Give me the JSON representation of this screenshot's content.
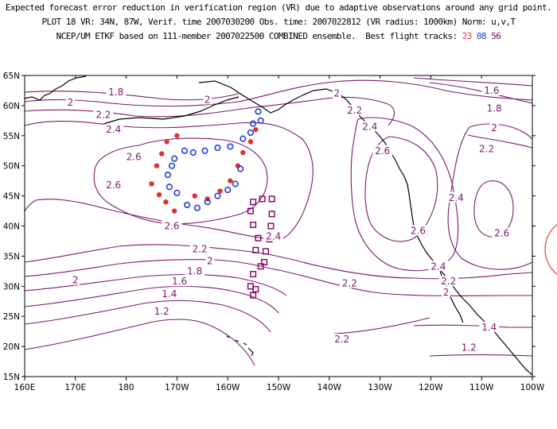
{
  "header": {
    "line1": "Expected forecast error reduction in verification region (VR) due to adaptive observations around any grid point.",
    "line2": "PLOT 18 VR: 34N, 87W, Verif. time 2007030200 Obs. time: 2007022812 (VR radius: 1000km) Norm: u,v,T",
    "line3_prefix": "NCEP/UM ETKF based on 111-member 2007022500 COMBINED ensemble.  Best flight tracks: ",
    "track1": "23",
    "track2": "08",
    "track3": "56"
  },
  "colors": {
    "contour": "#7a1a6e",
    "track1": "#e03030",
    "track2": "#2040d0",
    "track3": "#800060",
    "coast": "#000000",
    "vr_circle": "#e04040"
  },
  "map": {
    "lon_ticks": [
      "160E",
      "170E",
      "180",
      "170W",
      "160W",
      "150W",
      "140W",
      "130W",
      "120W",
      "110W",
      "100W"
    ],
    "lat_ticks": [
      "15N",
      "20N",
      "25N",
      "30N",
      "35N",
      "40N",
      "45N",
      "50N",
      "55N",
      "60N",
      "65N"
    ],
    "contour_labels": [
      {
        "text": "2",
        "lon": -164,
        "lat": 61
      },
      {
        "text": "1.8",
        "lon": 178,
        "lat": 62.2
      },
      {
        "text": "2",
        "lon": 169,
        "lat": 60.5
      },
      {
        "text": "2.2",
        "lon": 175.5,
        "lat": 58.5
      },
      {
        "text": "2.4",
        "lon": 177.5,
        "lat": 56
      },
      {
        "text": "2.6",
        "lon": -178.5,
        "lat": 51.5
      },
      {
        "text": "2.6",
        "lon": 177.5,
        "lat": 46.8
      },
      {
        "text": "2.6",
        "lon": -171,
        "lat": 40
      },
      {
        "text": "2.4",
        "lon": -151,
        "lat": 38.3
      },
      {
        "text": "2.2",
        "lon": -165.5,
        "lat": 36.2
      },
      {
        "text": "2",
        "lon": -163.5,
        "lat": 34.2
      },
      {
        "text": "1.8",
        "lon": -166.5,
        "lat": 32.5
      },
      {
        "text": "1.6",
        "lon": -169.5,
        "lat": 30.8
      },
      {
        "text": "1.4",
        "lon": -171.5,
        "lat": 28.7
      },
      {
        "text": "1.2",
        "lon": -173,
        "lat": 25.8
      },
      {
        "text": "2",
        "lon": 170,
        "lat": 31
      },
      {
        "text": "2",
        "lon": -138.5,
        "lat": 62
      },
      {
        "text": "2.2",
        "lon": -135,
        "lat": 59.2
      },
      {
        "text": "2.4",
        "lon": -132,
        "lat": 56.5
      },
      {
        "text": "2.6",
        "lon": -129.5,
        "lat": 52.5
      },
      {
        "text": "2.6",
        "lon": -122.5,
        "lat": 39.2
      },
      {
        "text": "2.2",
        "lon": -136,
        "lat": 30.5
      },
      {
        "text": "2.2",
        "lon": -137.5,
        "lat": 21.2
      },
      {
        "text": "2.4",
        "lon": -118.5,
        "lat": 33.3
      },
      {
        "text": "2.2",
        "lon": -116.5,
        "lat": 30.8
      },
      {
        "text": "2",
        "lon": -117,
        "lat": 29
      },
      {
        "text": "1.6",
        "lon": -108,
        "lat": 62.5
      },
      {
        "text": "1.8",
        "lon": -107.5,
        "lat": 59.5
      },
      {
        "text": "2",
        "lon": -107.5,
        "lat": 56.3
      },
      {
        "text": "2.2",
        "lon": -109,
        "lat": 52.8
      },
      {
        "text": "2.4",
        "lon": -115,
        "lat": 44.7
      },
      {
        "text": "2.6",
        "lon": -106,
        "lat": 38.8
      },
      {
        "text": "1.4",
        "lon": -108.5,
        "lat": 23.2
      },
      {
        "text": "1.2",
        "lon": -112.5,
        "lat": 19.8
      }
    ],
    "track1_points": [
      [
        -175.0,
        47.0
      ],
      [
        -174.0,
        50.0
      ],
      [
        -173.0,
        52.0
      ],
      [
        -172.0,
        54.0
      ],
      [
        -170.0,
        55.0
      ],
      [
        -173.5,
        45.2
      ],
      [
        -172.2,
        44.0
      ],
      [
        -170.5,
        42.5
      ],
      [
        -166.5,
        45.0
      ],
      [
        -164.0,
        44.5
      ],
      [
        -161.5,
        45.8
      ],
      [
        -159.5,
        47.5
      ],
      [
        -158.0,
        50.0
      ],
      [
        -157.0,
        52.2
      ],
      [
        -155.5,
        54.0
      ],
      [
        -154.5,
        56.0
      ]
    ],
    "track2_points": [
      [
        -170.5,
        51.2
      ],
      [
        -168.5,
        52.5
      ],
      [
        -166.8,
        52.2
      ],
      [
        -164.5,
        52.5
      ],
      [
        -162.0,
        53.0
      ],
      [
        -159.5,
        53.2
      ],
      [
        -157.0,
        54.5
      ],
      [
        -155.0,
        57.0
      ],
      [
        -154.0,
        59.0
      ],
      [
        -153.5,
        57.5
      ],
      [
        -155.5,
        55.5
      ],
      [
        -157.5,
        49.5
      ],
      [
        -158.5,
        47.0
      ],
      [
        -160.0,
        46.0
      ],
      [
        -162.0,
        45.0
      ],
      [
        -164.0,
        44.0
      ],
      [
        -166.0,
        43.0
      ],
      [
        -168.0,
        43.5
      ],
      [
        -170.0,
        45.5
      ],
      [
        -171.5,
        46.5
      ],
      [
        -171.8,
        48.5
      ],
      [
        -171.0,
        50.0
      ]
    ],
    "track3_points": [
      [
        -155.0,
        44.0
      ],
      [
        -153.2,
        44.5
      ],
      [
        -151.3,
        44.5
      ],
      [
        -155.5,
        42.5
      ],
      [
        -151.3,
        42.0
      ],
      [
        -155.0,
        40.2
      ],
      [
        -151.5,
        40.0
      ],
      [
        -154.0,
        38.0
      ],
      [
        -151.8,
        37.8
      ],
      [
        -154.5,
        36.0
      ],
      [
        -152.5,
        35.8
      ],
      [
        -152.8,
        34.0
      ],
      [
        -153.5,
        33.3
      ],
      [
        -155.0,
        32.0
      ],
      [
        -155.5,
        30.0
      ],
      [
        -154.5,
        29.5
      ],
      [
        -155.0,
        28.5
      ]
    ],
    "vr_circle": {
      "lat": 34,
      "lon": -87,
      "radius_km": 1000
    }
  }
}
